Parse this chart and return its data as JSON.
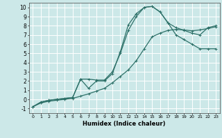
{
  "xlabel": "Humidex (Indice chaleur)",
  "background_color": "#cce8e8",
  "grid_color": "#ffffff",
  "line_color": "#2d7068",
  "xlim": [
    -0.5,
    23.5
  ],
  "ylim": [
    -1.5,
    10.5
  ],
  "xticks": [
    0,
    1,
    2,
    3,
    4,
    5,
    6,
    7,
    8,
    9,
    10,
    11,
    12,
    13,
    14,
    15,
    16,
    17,
    18,
    19,
    20,
    21,
    22,
    23
  ],
  "yticks": [
    -1,
    0,
    1,
    2,
    3,
    4,
    5,
    6,
    7,
    8,
    9,
    10
  ],
  "line1_x": [
    0,
    1,
    2,
    3,
    4,
    5,
    6,
    7,
    8,
    9,
    10,
    11,
    12,
    13,
    14,
    15,
    16,
    17,
    18,
    19,
    20,
    21,
    22,
    23
  ],
  "line1_y": [
    -0.8,
    -0.4,
    -0.2,
    -0.1,
    0.0,
    0.1,
    0.35,
    0.6,
    0.9,
    1.2,
    1.8,
    2.5,
    3.2,
    4.2,
    5.5,
    6.8,
    7.2,
    7.5,
    7.6,
    7.55,
    7.45,
    7.55,
    7.7,
    7.9
  ],
  "line2_x": [
    0,
    1,
    2,
    3,
    4,
    5,
    6,
    7,
    8,
    9,
    10,
    11,
    12,
    13,
    14,
    15,
    16,
    17,
    18,
    19,
    20,
    21,
    22,
    23
  ],
  "line2_y": [
    -0.8,
    -0.3,
    -0.1,
    0.0,
    0.1,
    0.2,
    2.2,
    1.2,
    2.0,
    2.0,
    2.8,
    5.2,
    8.1,
    9.3,
    10.0,
    10.1,
    9.5,
    8.3,
    7.0,
    6.5,
    6.0,
    5.5,
    5.5,
    5.5
  ],
  "line3_x": [
    0,
    1,
    2,
    3,
    4,
    5,
    6,
    7,
    8,
    9,
    10,
    11,
    12,
    13,
    14,
    15,
    16,
    17,
    18,
    19,
    20,
    21,
    22,
    23
  ],
  "line3_y": [
    -0.8,
    -0.3,
    -0.1,
    0.0,
    0.1,
    0.2,
    2.2,
    2.2,
    2.1,
    2.1,
    3.0,
    5.0,
    7.5,
    9.0,
    10.0,
    10.1,
    9.5,
    8.3,
    7.8,
    7.5,
    7.2,
    7.0,
    7.8,
    8.0
  ]
}
